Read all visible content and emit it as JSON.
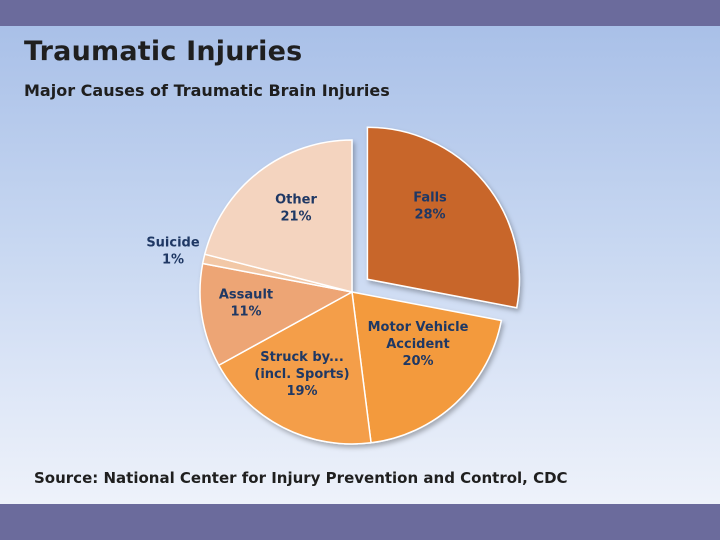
{
  "slide": {
    "title": "Traumatic Injuries",
    "subtitle": "Major Causes of Traumatic Brain Injuries",
    "source": "Source:  National Center for Injury Prevention and Control, CDC"
  },
  "chart_data": {
    "type": "pie",
    "title": "Major Causes of Traumatic Brain Injuries",
    "slices": [
      {
        "label_lines": [
          "Falls"
        ],
        "percent_text": "28%",
        "value": 28,
        "color": "#c8662b",
        "exploded": true
      },
      {
        "label_lines": [
          "Motor Vehicle",
          "Accident"
        ],
        "percent_text": "20%",
        "value": 20,
        "color": "#f39a3c",
        "exploded": false
      },
      {
        "label_lines": [
          "Struck by...",
          "(incl. Sports)"
        ],
        "percent_text": "19%",
        "value": 19,
        "color": "#f49e48",
        "exploded": false
      },
      {
        "label_lines": [
          "Assault"
        ],
        "percent_text": "11%",
        "value": 11,
        "color": "#eda574",
        "exploded": false
      },
      {
        "label_lines": [
          "Suicide"
        ],
        "percent_text": "1%",
        "value": 1,
        "color": "#f2c8a7",
        "exploded": false
      },
      {
        "label_lines": [
          "Other"
        ],
        "percent_text": "21%",
        "value": 21,
        "color": "#f4d4bf",
        "exploded": false
      }
    ],
    "label_color": "#1f3864",
    "legend": "none"
  }
}
